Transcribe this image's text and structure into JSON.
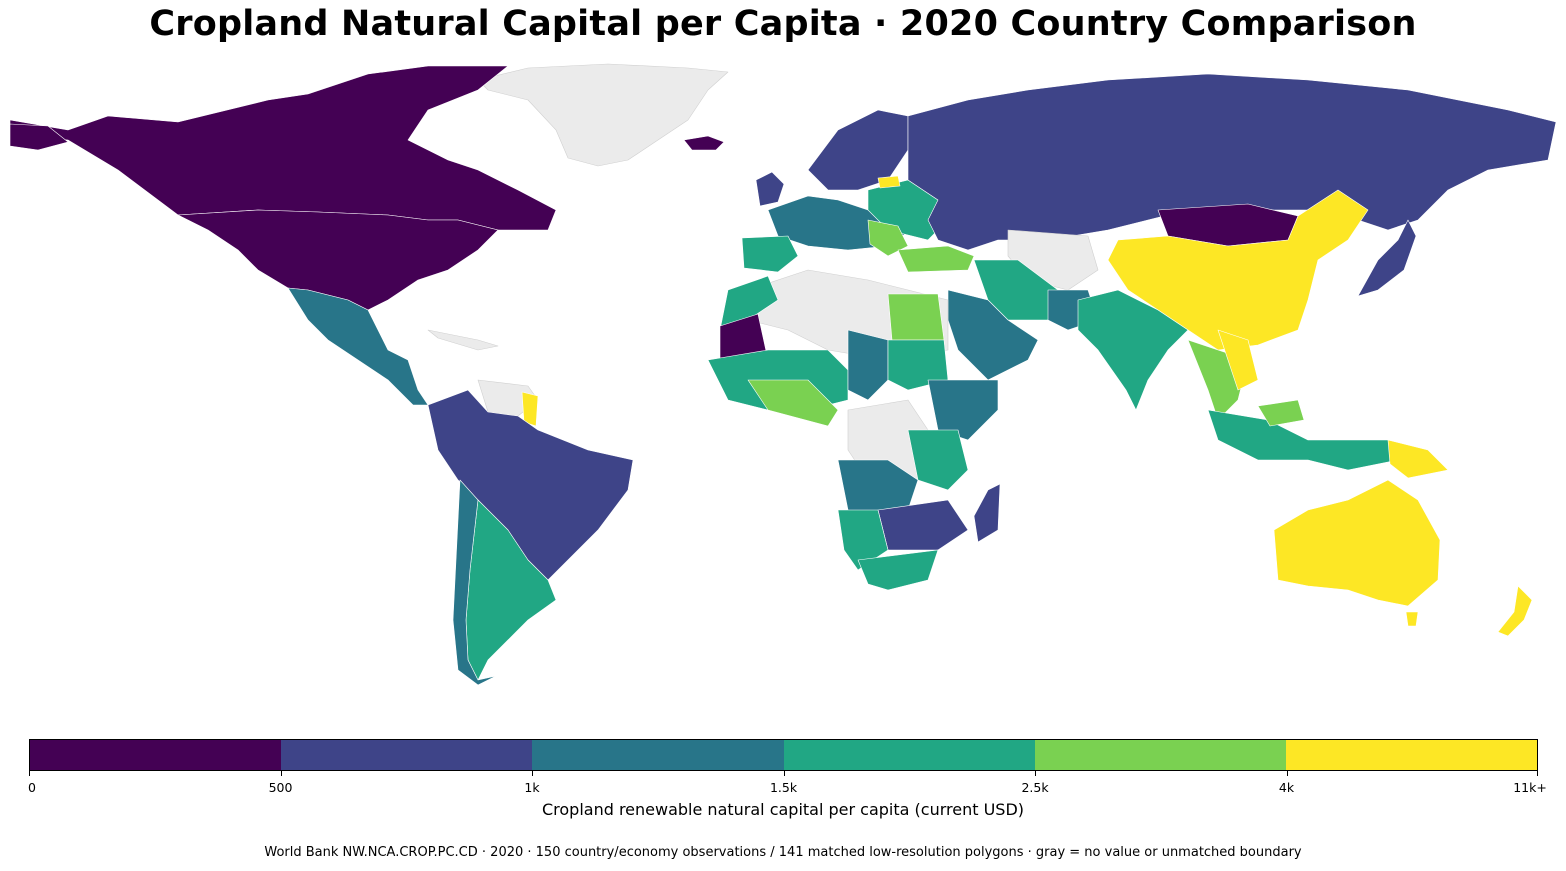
{
  "title": "Cropland Natural Capital per Capita · 2020 Country Comparison",
  "legend": {
    "title": "Cropland renewable natural capital per capita (current USD)",
    "bins": [
      {
        "from": 0,
        "to": 500,
        "color": "#440154"
      },
      {
        "from": 500,
        "to": 1000,
        "color": "#3e4488"
      },
      {
        "from": 1000,
        "to": 1500,
        "color": "#287589"
      },
      {
        "from": 1500,
        "to": 2500,
        "color": "#21a784"
      },
      {
        "from": 2500,
        "to": 4000,
        "color": "#7ad151"
      },
      {
        "from": 4000,
        "to": 11000,
        "color": "#fde725"
      }
    ],
    "tick_labels": [
      "0",
      "500",
      "1k",
      "1.5k",
      "2.5k",
      "4k",
      "11k+"
    ]
  },
  "no_data_color": "#ebebeb",
  "footnote": "World Bank NW.NCA.CROP.PC.CD · 2020 · 150 country/economy observations / 141 matched low-resolution polygons · gray = no value or unmatched boundary"
}
